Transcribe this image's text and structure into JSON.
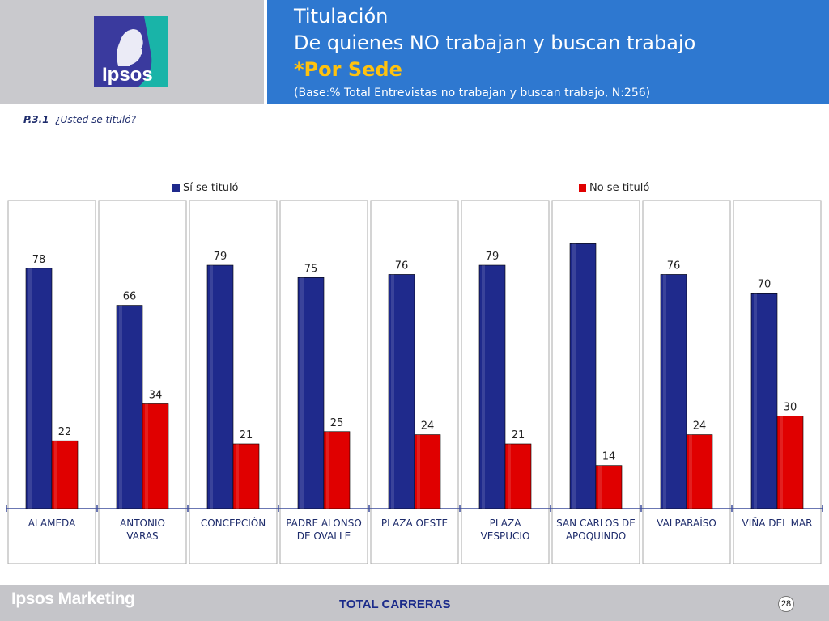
{
  "header": {
    "title_line1": "Titulación",
    "title_line2": "De quienes NO trabajan y buscan trabajo",
    "title_line3": "*Por Sede",
    "base_note": "(Base:% Total Entrevistas no trabajan y buscan trabajo, N:256)",
    "logo_text": "Ipsos"
  },
  "question": {
    "code": "P.3.1",
    "text": "¿Usted se tituló?"
  },
  "colors": {
    "header_blue": "#2e78d0",
    "header_gray": "#c9c9cd",
    "highlight_yellow": "#ffc20e",
    "series_si": "#1f2a8c",
    "series_no": "#e00000",
    "logo_blue": "#3a3a9e",
    "logo_teal": "#19b4a8"
  },
  "chart_data": {
    "type": "bar",
    "categories": [
      "ALAMEDA",
      "ANTONIO VARAS",
      "CONCEPCIÓN",
      "PADRE ALONSO DE OVALLE",
      "PLAZA OESTE",
      "PLAZA VESPUCIO",
      "SAN CARLOS DE APOQUINDO",
      "VALPARAÍSO",
      "VIÑA DEL MAR"
    ],
    "category_lines": [
      [
        "ALAMEDA"
      ],
      [
        "ANTONIO",
        "VARAS"
      ],
      [
        "CONCEPCIÓN"
      ],
      [
        "PADRE ALONSO",
        "DE OVALLE"
      ],
      [
        "PLAZA OESTE"
      ],
      [
        "PLAZA",
        "VESPUCIO"
      ],
      [
        "SAN CARLOS DE",
        "APOQUINDO"
      ],
      [
        "VALPARAÍSO"
      ],
      [
        "VIÑA DEL MAR"
      ]
    ],
    "series": [
      {
        "name": "Sí se tituló",
        "values": [
          78,
          66,
          79,
          75,
          76,
          79,
          86,
          76,
          70
        ],
        "labels": [
          "78",
          "66",
          "79",
          "75",
          "76",
          "79",
          "",
          "76",
          "70"
        ]
      },
      {
        "name": "No se tituló",
        "values": [
          22,
          34,
          21,
          25,
          24,
          21,
          14,
          24,
          30
        ],
        "labels": [
          "22",
          "34",
          "21",
          "25",
          "24",
          "21",
          "14",
          "24",
          "30"
        ]
      }
    ],
    "ylim": [
      0,
      100
    ],
    "legend_position": "top"
  },
  "footer": {
    "brand": "Ipsos Marketing",
    "total": "TOTAL CARRERAS",
    "page": "28"
  }
}
